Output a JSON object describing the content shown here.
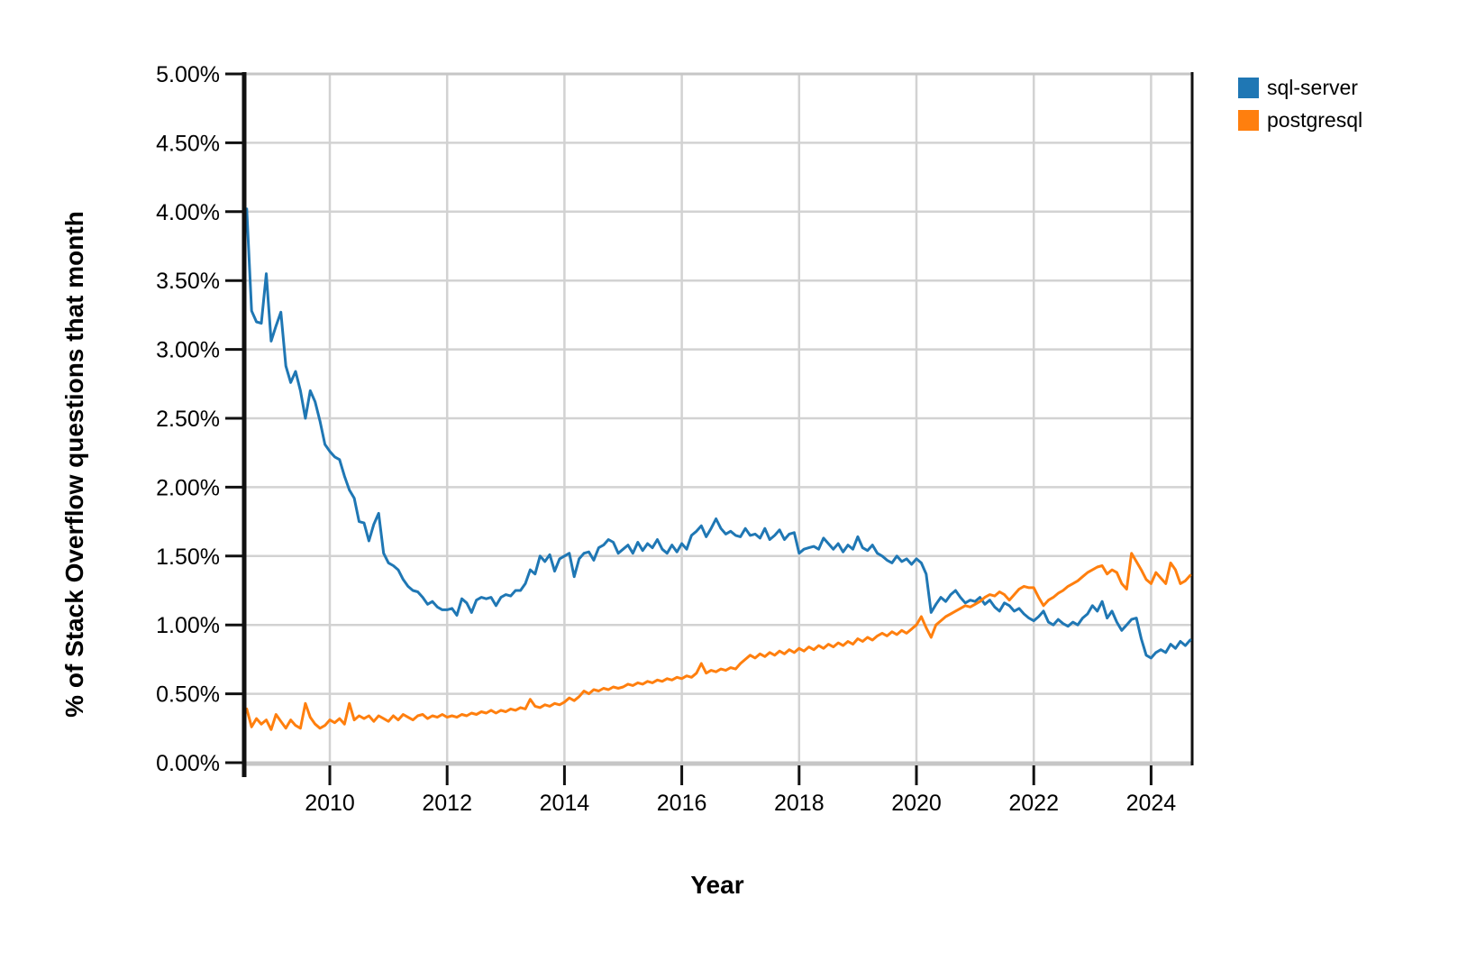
{
  "axes": {
    "y_title": "% of Stack Overflow questions that month",
    "x_title": "Year",
    "y_tick_labels": [
      "5.00%",
      "4.50%",
      "4.00%",
      "3.50%",
      "3.00%",
      "2.50%",
      "2.00%",
      "1.50%",
      "1.00%",
      "0.50%",
      "0.00%"
    ],
    "x_tick_labels": [
      "2010",
      "2012",
      "2014",
      "2016",
      "2018",
      "2020",
      "2022",
      "2024"
    ]
  },
  "legend": {
    "items": [
      {
        "label": "sql-server",
        "color": "#1f77b4"
      },
      {
        "label": "postgresql",
        "color": "#ff7f0e"
      }
    ]
  },
  "colors": {
    "gridline": "#d2d2d2",
    "frame_gray": "#c6c6c6",
    "axis_black": "#111111",
    "background": "#ffffff"
  },
  "chart_data": {
    "type": "line",
    "title": "",
    "xlabel": "Year",
    "ylabel": "% of Stack Overflow questions that month",
    "x_unit": "decimal year, monthly samples Aug 2008 - Sep 2024",
    "x_start": 2008.5833,
    "x_step": 0.0833333,
    "xlim": [
      2008.56,
      2024.72
    ],
    "ylim": [
      0,
      5
    ],
    "x_ticks_years": [
      2010,
      2012,
      2014,
      2016,
      2018,
      2020,
      2022,
      2024
    ],
    "y_ticks_percent": [
      5.0,
      4.5,
      4.0,
      3.5,
      3.0,
      2.5,
      2.0,
      1.5,
      1.0,
      0.5,
      0.0
    ],
    "grid": true,
    "legend_position": "top-right-outside",
    "series": [
      {
        "name": "sql-server",
        "color": "#1f77b4",
        "values": [
          4.02,
          3.28,
          3.2,
          3.19,
          3.55,
          3.06,
          3.17,
          3.27,
          2.88,
          2.76,
          2.84,
          2.7,
          2.5,
          2.7,
          2.62,
          2.48,
          2.31,
          2.26,
          2.22,
          2.2,
          2.08,
          1.98,
          1.92,
          1.75,
          1.74,
          1.61,
          1.73,
          1.81,
          1.52,
          1.45,
          1.43,
          1.4,
          1.33,
          1.28,
          1.25,
          1.24,
          1.2,
          1.15,
          1.17,
          1.13,
          1.11,
          1.11,
          1.12,
          1.07,
          1.19,
          1.16,
          1.09,
          1.18,
          1.2,
          1.19,
          1.2,
          1.14,
          1.2,
          1.22,
          1.21,
          1.25,
          1.25,
          1.3,
          1.4,
          1.37,
          1.5,
          1.46,
          1.51,
          1.39,
          1.48,
          1.5,
          1.52,
          1.35,
          1.48,
          1.52,
          1.53,
          1.47,
          1.56,
          1.58,
          1.62,
          1.6,
          1.52,
          1.55,
          1.58,
          1.52,
          1.6,
          1.54,
          1.59,
          1.56,
          1.62,
          1.55,
          1.52,
          1.58,
          1.53,
          1.59,
          1.55,
          1.65,
          1.68,
          1.72,
          1.64,
          1.7,
          1.77,
          1.7,
          1.66,
          1.68,
          1.65,
          1.64,
          1.7,
          1.65,
          1.66,
          1.63,
          1.7,
          1.62,
          1.65,
          1.69,
          1.62,
          1.66,
          1.67,
          1.52,
          1.55,
          1.56,
          1.57,
          1.55,
          1.63,
          1.59,
          1.55,
          1.59,
          1.53,
          1.58,
          1.55,
          1.64,
          1.56,
          1.54,
          1.58,
          1.52,
          1.5,
          1.47,
          1.45,
          1.5,
          1.46,
          1.48,
          1.44,
          1.48,
          1.45,
          1.37,
          1.09,
          1.15,
          1.2,
          1.17,
          1.22,
          1.25,
          1.2,
          1.16,
          1.18,
          1.17,
          1.2,
          1.15,
          1.18,
          1.13,
          1.1,
          1.16,
          1.14,
          1.1,
          1.12,
          1.08,
          1.05,
          1.03,
          1.06,
          1.1,
          1.02,
          1.0,
          1.04,
          1.01,
          0.99,
          1.02,
          1.0,
          1.05,
          1.08,
          1.14,
          1.1,
          1.17,
          1.05,
          1.1,
          1.02,
          0.96,
          1.0,
          1.04,
          1.05,
          0.9,
          0.78,
          0.76,
          0.8,
          0.82,
          0.8,
          0.86,
          0.83,
          0.88,
          0.85,
          0.89
        ]
      },
      {
        "name": "postgresql",
        "color": "#ff7f0e",
        "values": [
          0.39,
          0.26,
          0.32,
          0.28,
          0.31,
          0.24,
          0.35,
          0.3,
          0.25,
          0.31,
          0.27,
          0.25,
          0.43,
          0.33,
          0.28,
          0.25,
          0.27,
          0.31,
          0.29,
          0.32,
          0.28,
          0.43,
          0.31,
          0.34,
          0.32,
          0.34,
          0.3,
          0.34,
          0.32,
          0.3,
          0.34,
          0.31,
          0.35,
          0.33,
          0.31,
          0.34,
          0.35,
          0.32,
          0.34,
          0.33,
          0.35,
          0.33,
          0.34,
          0.33,
          0.35,
          0.34,
          0.36,
          0.35,
          0.37,
          0.36,
          0.38,
          0.36,
          0.38,
          0.37,
          0.39,
          0.38,
          0.4,
          0.39,
          0.46,
          0.41,
          0.4,
          0.42,
          0.41,
          0.43,
          0.42,
          0.44,
          0.47,
          0.45,
          0.48,
          0.52,
          0.5,
          0.53,
          0.52,
          0.54,
          0.53,
          0.55,
          0.54,
          0.55,
          0.57,
          0.56,
          0.58,
          0.57,
          0.59,
          0.58,
          0.6,
          0.59,
          0.61,
          0.6,
          0.62,
          0.61,
          0.63,
          0.62,
          0.65,
          0.72,
          0.65,
          0.67,
          0.66,
          0.68,
          0.67,
          0.69,
          0.68,
          0.72,
          0.75,
          0.78,
          0.76,
          0.79,
          0.77,
          0.8,
          0.78,
          0.81,
          0.79,
          0.82,
          0.8,
          0.83,
          0.81,
          0.84,
          0.82,
          0.85,
          0.83,
          0.86,
          0.84,
          0.87,
          0.85,
          0.88,
          0.86,
          0.9,
          0.88,
          0.91,
          0.89,
          0.92,
          0.94,
          0.92,
          0.95,
          0.93,
          0.96,
          0.94,
          0.97,
          1.0,
          1.06,
          0.98,
          0.91,
          1.0,
          1.03,
          1.06,
          1.08,
          1.1,
          1.12,
          1.14,
          1.13,
          1.15,
          1.17,
          1.2,
          1.22,
          1.21,
          1.24,
          1.22,
          1.18,
          1.22,
          1.26,
          1.28,
          1.27,
          1.27,
          1.2,
          1.14,
          1.18,
          1.2,
          1.23,
          1.25,
          1.28,
          1.3,
          1.32,
          1.35,
          1.38,
          1.4,
          1.42,
          1.43,
          1.37,
          1.4,
          1.38,
          1.3,
          1.26,
          1.52,
          1.46,
          1.4,
          1.33,
          1.3,
          1.38,
          1.34,
          1.3,
          1.45,
          1.4,
          1.3,
          1.32,
          1.36
        ]
      }
    ]
  }
}
